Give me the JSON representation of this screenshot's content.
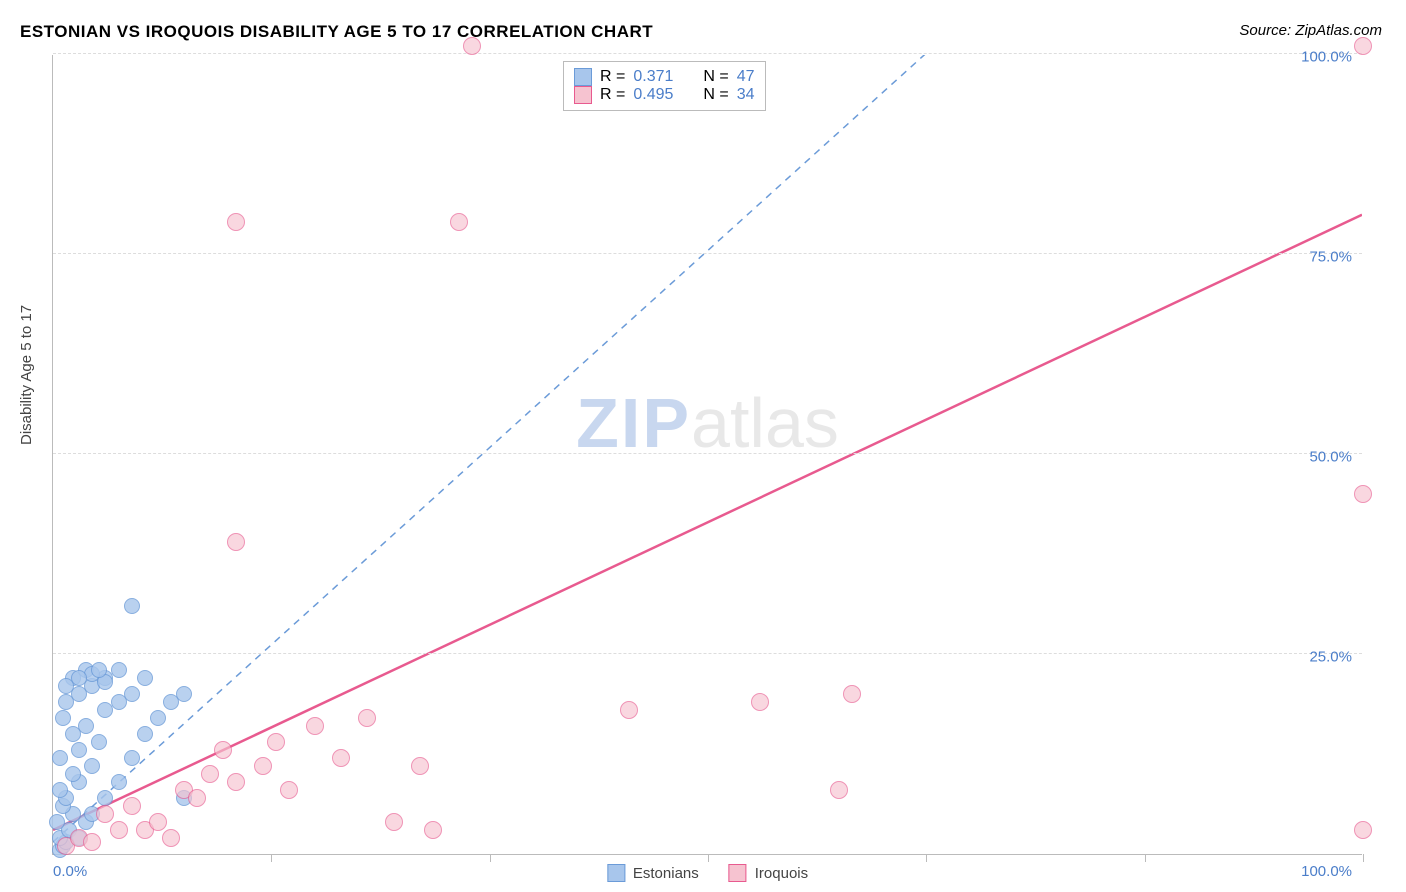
{
  "title": "ESTONIAN VS IROQUOIS DISABILITY AGE 5 TO 17 CORRELATION CHART",
  "source_prefix": "Source: ",
  "source": "ZipAtlas.com",
  "ylabel": "Disability Age 5 to 17",
  "watermark_a": "ZIP",
  "watermark_b": "atlas",
  "chart": {
    "type": "scatter",
    "xlim": [
      0,
      100
    ],
    "ylim": [
      0,
      100
    ],
    "yticks": [
      25,
      50,
      75,
      100
    ],
    "ytick_labels": [
      "25.0%",
      "50.0%",
      "75.0%",
      "100.0%"
    ],
    "xticks": [
      16.67,
      33.33,
      50,
      66.67,
      83.33,
      100
    ],
    "x_min_label": "0.0%",
    "x_max_label": "100.0%",
    "grid_color": "#dddddd",
    "axis_color": "#bbbbbb",
    "background_color": "#ffffff",
    "tick_label_color": "#4a7dc9",
    "series": [
      {
        "name": "Estonians",
        "color_fill": "#a8c6ec",
        "color_stroke": "#6b9bd8",
        "marker_radius": 8,
        "fill_opacity": 0.55,
        "R_label": "R =",
        "R": "0.371",
        "N_label": "N =",
        "N": "47",
        "trend": {
          "slope": 1.48,
          "intercept": 1.5,
          "dashed": true,
          "width": 1.5
        },
        "points": [
          [
            0.5,
            0.5
          ],
          [
            0.8,
            1
          ],
          [
            1,
            1.5
          ],
          [
            0.5,
            2
          ],
          [
            1.2,
            3
          ],
          [
            0.3,
            4
          ],
          [
            2,
            2
          ],
          [
            1.5,
            5
          ],
          [
            0.8,
            6
          ],
          [
            2.5,
            4
          ],
          [
            1,
            7
          ],
          [
            3,
            5
          ],
          [
            0.5,
            8
          ],
          [
            2,
            9
          ],
          [
            1.5,
            10
          ],
          [
            0.5,
            12
          ],
          [
            4,
            7
          ],
          [
            2,
            13
          ],
          [
            3,
            11
          ],
          [
            1.5,
            15
          ],
          [
            0.8,
            17
          ],
          [
            5,
            9
          ],
          [
            2.5,
            16
          ],
          [
            1,
            19
          ],
          [
            3.5,
            14
          ],
          [
            6,
            12
          ],
          [
            2,
            20
          ],
          [
            4,
            18
          ],
          [
            1.5,
            22
          ],
          [
            7,
            15
          ],
          [
            3,
            21
          ],
          [
            5,
            19
          ],
          [
            2.5,
            23
          ],
          [
            8,
            17
          ],
          [
            4,
            22
          ],
          [
            1,
            21
          ],
          [
            6,
            20
          ],
          [
            3,
            22.5
          ],
          [
            2,
            22
          ],
          [
            5,
            23
          ],
          [
            9,
            19
          ],
          [
            7,
            22
          ],
          [
            4,
            21.5
          ],
          [
            10,
            20
          ],
          [
            3.5,
            23
          ],
          [
            6,
            31
          ],
          [
            10,
            7
          ]
        ]
      },
      {
        "name": "Iroquois",
        "color_fill": "#f6c3d0",
        "color_stroke": "#e85a8f",
        "marker_radius": 9,
        "fill_opacity": 0.4,
        "R_label": "R =",
        "R": "0.495",
        "N_label": "N =",
        "N": "34",
        "trend": {
          "slope": 0.77,
          "intercept": 3.0,
          "dashed": false,
          "width": 2.5
        },
        "points": [
          [
            1,
            1
          ],
          [
            2,
            2
          ],
          [
            3,
            1.5
          ],
          [
            5,
            3
          ],
          [
            4,
            5
          ],
          [
            7,
            3
          ],
          [
            6,
            6
          ],
          [
            8,
            4
          ],
          [
            10,
            8
          ],
          [
            9,
            2
          ],
          [
            12,
            10
          ],
          [
            11,
            7
          ],
          [
            14,
            9
          ],
          [
            13,
            13
          ],
          [
            16,
            11
          ],
          [
            18,
            8
          ],
          [
            20,
            16
          ],
          [
            17,
            14
          ],
          [
            22,
            12
          ],
          [
            24,
            17
          ],
          [
            26,
            4
          ],
          [
            28,
            11
          ],
          [
            29,
            3
          ],
          [
            31,
            79
          ],
          [
            14,
            79
          ],
          [
            14,
            39
          ],
          [
            32,
            101
          ],
          [
            44,
            18
          ],
          [
            54,
            19
          ],
          [
            61,
            20
          ],
          [
            60,
            8
          ],
          [
            100,
            3
          ],
          [
            100,
            45
          ],
          [
            100,
            101
          ]
        ]
      }
    ]
  }
}
